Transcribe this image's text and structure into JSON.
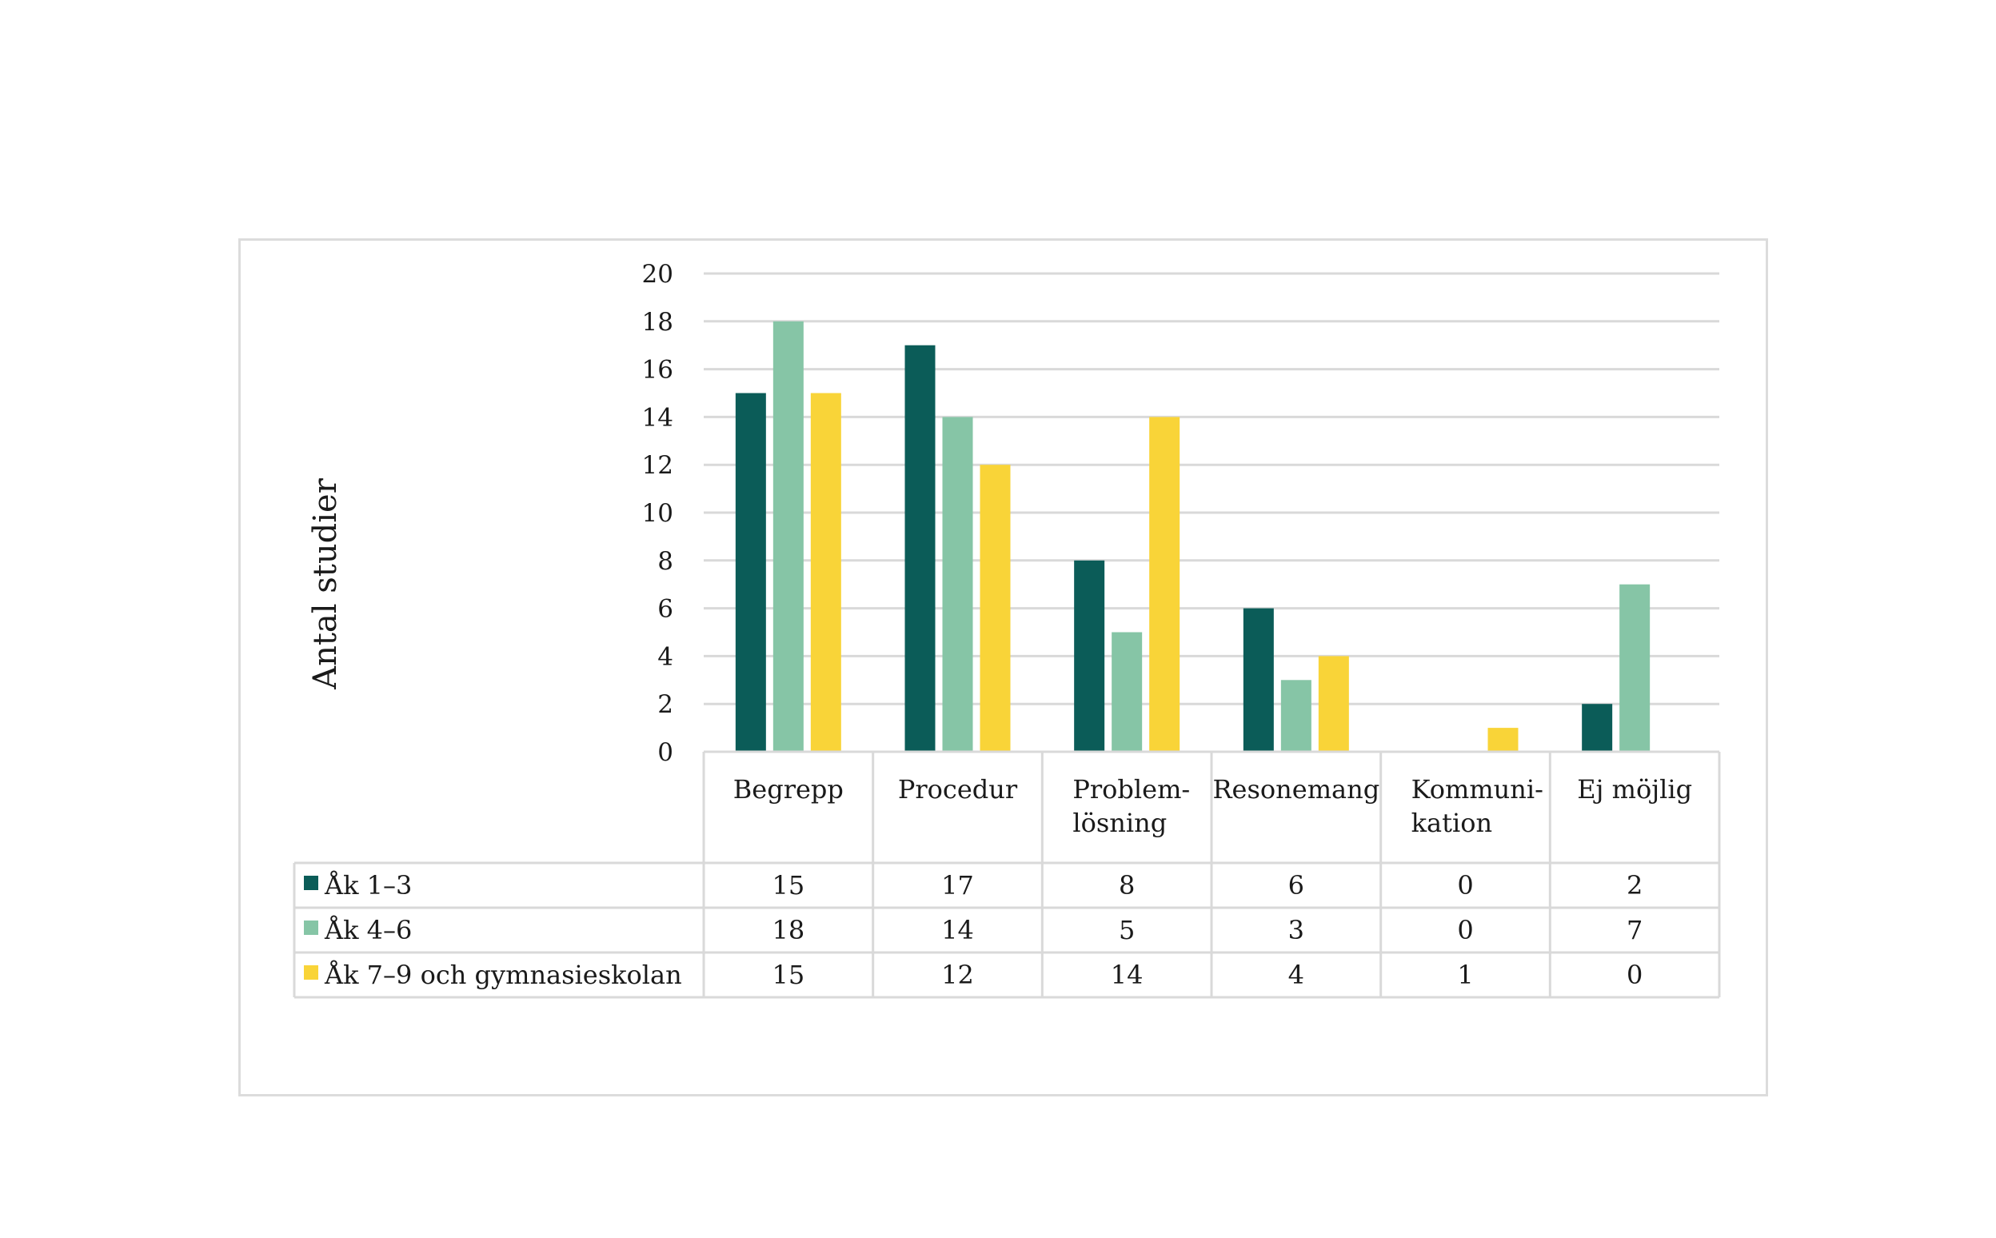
{
  "chart_data": {
    "type": "bar",
    "title": "",
    "xlabel": "",
    "ylabel": "Antal studier",
    "ylim": [
      0,
      20
    ],
    "yticks": [
      0,
      2,
      4,
      6,
      8,
      10,
      12,
      14,
      16,
      18,
      20
    ],
    "grid": true,
    "categories": [
      [
        "Begrepp"
      ],
      [
        "Procedur"
      ],
      [
        "Problem-",
        "lösning"
      ],
      [
        "Resonemang"
      ],
      [
        "Kommuni-",
        "kation"
      ],
      [
        "Ej möjlig"
      ]
    ],
    "series": [
      {
        "name": "Åk 1–3",
        "color": "#0b5c58",
        "values": [
          15,
          17,
          8,
          6,
          0,
          2
        ]
      },
      {
        "name": "Åk 4–6",
        "color": "#86c5a6",
        "values": [
          18,
          14,
          5,
          3,
          0,
          7
        ]
      },
      {
        "name": "Åk 7–9 och gymnasieskolan",
        "color": "#f9d438",
        "values": [
          15,
          12,
          14,
          4,
          1,
          0
        ]
      }
    ],
    "legend": "data-table"
  }
}
